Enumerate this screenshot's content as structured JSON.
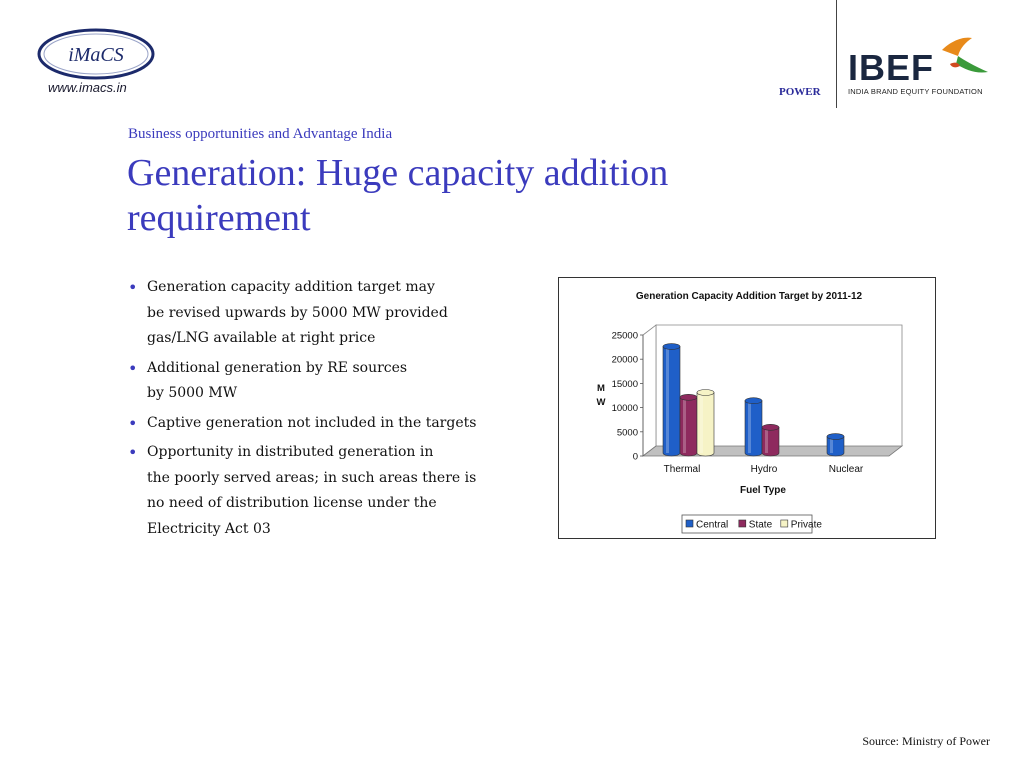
{
  "header": {
    "imacs_logo_text": "iMaCS",
    "imacs_url": "www.imacs.in",
    "section_tag": "POWER",
    "ibef_logo_text": "IBEF",
    "ibef_tagline": "INDIA BRAND EQUITY FOUNDATION"
  },
  "slide": {
    "subtitle": "Business opportunities and Advantage India",
    "title": "Generation: Huge capacity addition requirement",
    "bullets": [
      "Generation capacity addition target may\nbe revised upwards by 5000 MW provided\ngas/LNG available at right price",
      "Additional generation by RE sources\nby 5000 MW",
      "Captive generation not included in the targets",
      "Opportunity in distributed generation in\nthe poorly served areas; in such areas there is\nno need of distribution license under the\nElectricity Act 03"
    ],
    "source": "Source: Ministry of Power"
  },
  "colors": {
    "accent": "#3b3bbd",
    "central": "#1f5fc8",
    "state": "#8e2a5e",
    "private": "#f6f3c6"
  },
  "chart_data": {
    "type": "bar",
    "title": "Generation Capacity Addition Target by 2011-12",
    "xlabel": "Fuel Type",
    "ylabel": "MW",
    "categories": [
      "Thermal",
      "Hydro",
      "Nuclear"
    ],
    "series": [
      {
        "name": "Central",
        "values": [
          22000,
          10800,
          3400
        ]
      },
      {
        "name": "State",
        "values": [
          11500,
          5300,
          0
        ]
      },
      {
        "name": "Private",
        "values": [
          12500,
          0,
          0
        ]
      }
    ],
    "ylim": [
      0,
      25000
    ],
    "yticks": [
      0,
      5000,
      10000,
      15000,
      20000,
      25000
    ],
    "grid": false,
    "legend": "bottom",
    "style": "3d-cylinder"
  }
}
